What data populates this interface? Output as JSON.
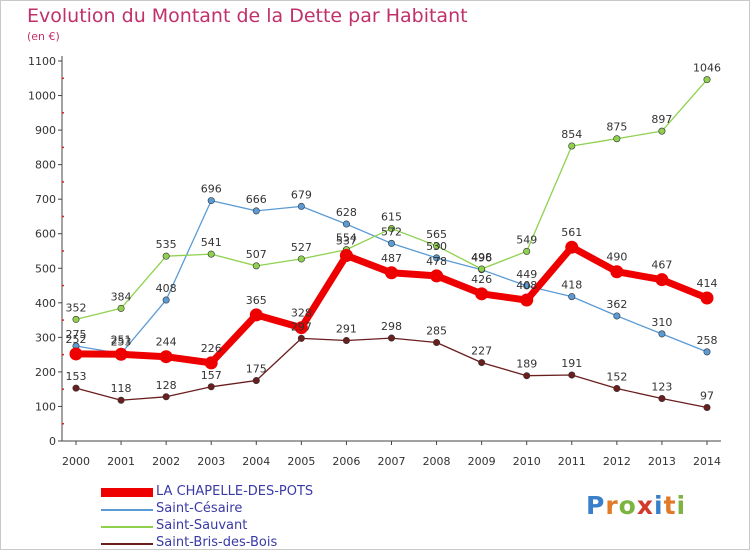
{
  "title": "Evolution du Montant de la Dette par Habitant",
  "subtitle": "(en €)",
  "logo_letters": [
    "P",
    "r",
    "o",
    "x",
    "i",
    "t",
    "i"
  ],
  "chart_data": {
    "type": "line",
    "title": "Evolution du Montant de la Dette par Habitant",
    "ylabel": "(en €)",
    "x": [
      "2000",
      "2001",
      "2002",
      "2003",
      "2004",
      "2005",
      "2006",
      "2007",
      "2008",
      "2009",
      "2010",
      "2011",
      "2012",
      "2013",
      "2014"
    ],
    "ylim": [
      0,
      1100
    ],
    "yticks": [
      0,
      100,
      200,
      300,
      400,
      500,
      600,
      700,
      800,
      900,
      1000,
      1100
    ],
    "grid": false,
    "legend": "bottom-left",
    "series": [
      {
        "name": "LA CHAPELLE-DES-POTS",
        "color": "#ee0000",
        "emphasis": true,
        "values": [
          252,
          251,
          244,
          226,
          365,
          328,
          537,
          487,
          478,
          426,
          408,
          561,
          490,
          467,
          414
        ]
      },
      {
        "name": "Saint-Césaire",
        "color": "#5b9bd5",
        "emphasis": false,
        "values": [
          275,
          253,
          408,
          696,
          666,
          679,
          628,
          572,
          530,
          496,
          449,
          418,
          362,
          310,
          258
        ]
      },
      {
        "name": "Saint-Sauvant",
        "color": "#8fd14f",
        "emphasis": false,
        "values": [
          352,
          384,
          535,
          541,
          507,
          527,
          554,
          615,
          565,
          498,
          549,
          854,
          875,
          897,
          1046
        ]
      },
      {
        "name": "Saint-Bris-des-Bois",
        "color": "#6b1e1e",
        "emphasis": false,
        "values": [
          153,
          118,
          128,
          157,
          175,
          297,
          291,
          298,
          285,
          227,
          189,
          191,
          152,
          123,
          97
        ]
      }
    ]
  }
}
